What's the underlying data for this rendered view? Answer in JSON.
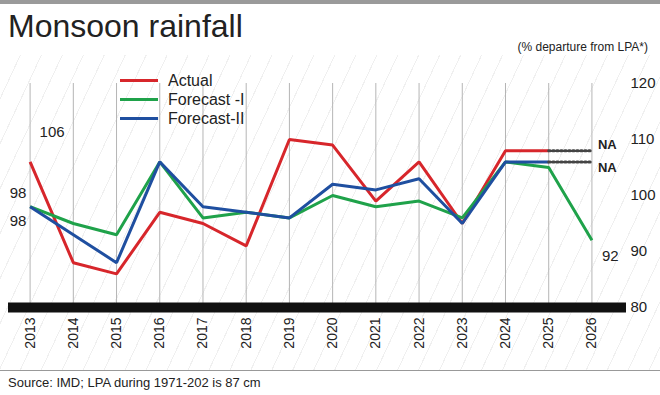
{
  "chart_data": {
    "type": "line",
    "title": "Monsoon rainfall",
    "subtitle": "(% departure from LPA*)",
    "caption": "Source: IMD; LPA during 1971-202 is 87 cm",
    "x": [
      2013,
      2014,
      2015,
      2016,
      2017,
      2018,
      2019,
      2020,
      2021,
      2022,
      2023,
      2024,
      2025,
      2026
    ],
    "series": [
      {
        "name": "Actual",
        "color": "#d7262b",
        "values": [
          106,
          88,
          86,
          97,
          95,
          91,
          110,
          109,
          99,
          106,
          95,
          108,
          108,
          null
        ]
      },
      {
        "name": "Forecast -I",
        "color": "#1fa24a",
        "values": [
          98,
          95,
          93,
          106,
          96,
          97,
          96,
          100,
          98,
          99,
          96,
          106,
          105,
          92
        ]
      },
      {
        "name": "Forecast-II",
        "color": "#1f4fa0",
        "values": [
          98,
          93,
          88,
          106,
          98,
          97,
          96,
          102,
          101,
          103,
          95,
          106,
          106,
          null
        ]
      }
    ],
    "xlim": [
      2012.5,
      2026.8
    ],
    "xticks": [
      2013,
      2014,
      2015,
      2016,
      2017,
      2018,
      2019,
      2020,
      2021,
      2022,
      2023,
      2024,
      2025,
      2026
    ],
    "ylim": [
      80,
      120
    ],
    "yticks": [
      80,
      90,
      100,
      110,
      120
    ],
    "grid": true,
    "legend": "top-left",
    "annotations": [
      {
        "text": "106",
        "x": 2013,
        "y": 106
      },
      {
        "text": "98",
        "x": 2013,
        "y": 98
      },
      {
        "text": "98",
        "x": 2013,
        "y": 98
      },
      {
        "text": "92",
        "x": 2026,
        "y": 92
      },
      {
        "text": "NA",
        "x": 2026,
        "y": 108,
        "series": "Actual"
      },
      {
        "text": "NA",
        "x": 2026,
        "y": 106,
        "series": "Forecast-II"
      }
    ]
  }
}
